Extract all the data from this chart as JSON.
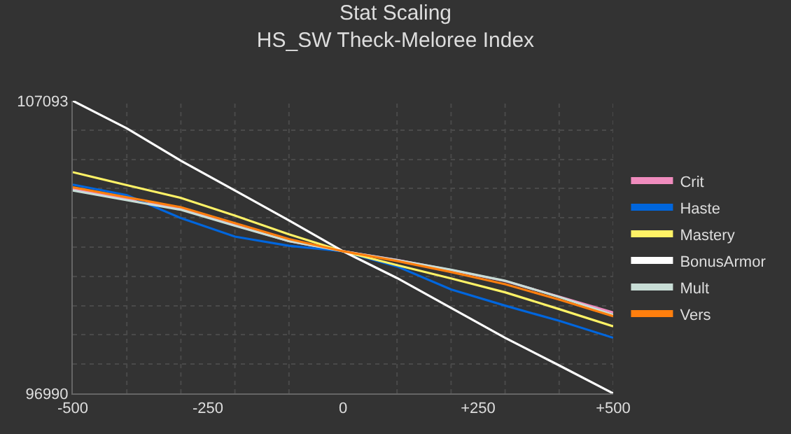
{
  "chart_data": {
    "type": "line",
    "title": "Stat Scaling",
    "subtitle": "HS_SW Theck-Meloree Index",
    "x": [
      -500,
      -400,
      -300,
      -200,
      -100,
      0,
      100,
      200,
      300,
      400,
      500
    ],
    "series": [
      {
        "name": "Crit",
        "color": "#f08cbe",
        "values": [
          104043,
          103700,
          103357,
          102800,
          102246,
          101898,
          101600,
          101250,
          100870,
          100330,
          99782
        ]
      },
      {
        "name": "Haste",
        "color": "#0066dd",
        "values": [
          104200,
          103833,
          103042,
          102404,
          102088,
          101898,
          101374,
          100578,
          100020,
          99496,
          98910
        ]
      },
      {
        "name": "Mastery",
        "color": "#fff266",
        "values": [
          104629,
          104180,
          103740,
          103130,
          102485,
          101898,
          101420,
          100960,
          100480,
          99900,
          99305
        ]
      },
      {
        "name": "BonusArmor",
        "color": "#ffffff",
        "values": [
          107093,
          106140,
          105025,
          103995,
          102961,
          101898,
          100973,
          99944,
          98910,
          97956,
          96990
        ]
      },
      {
        "name": "Mult",
        "color": "#c8ddd6",
        "values": [
          103995,
          103660,
          103330,
          102780,
          102250,
          101898,
          101590,
          101260,
          100880,
          100320,
          99706
        ]
      },
      {
        "name": "Vers",
        "color": "#ff7f0e",
        "values": [
          104105,
          103760,
          103420,
          102870,
          102320,
          101898,
          101560,
          101180,
          100760,
          100230,
          99658
        ]
      }
    ],
    "xlim": [
      -500,
      500
    ],
    "xticks": [
      {
        "value": -500,
        "label": "-500"
      },
      {
        "value": -400,
        "label": null
      },
      {
        "value": -300,
        "label": null
      },
      {
        "value": -250,
        "label": "-250"
      },
      {
        "value": -200,
        "label": null
      },
      {
        "value": -100,
        "label": null
      },
      {
        "value": 0,
        "label": "0"
      },
      {
        "value": 100,
        "label": null
      },
      {
        "value": 200,
        "label": null
      },
      {
        "value": 250,
        "label": "+250"
      },
      {
        "value": 300,
        "label": null
      },
      {
        "value": 400,
        "label": null
      },
      {
        "value": 500,
        "label": "+500"
      }
    ],
    "ylim": [
      96990,
      107093
    ],
    "yticks": [
      96990,
      {
        "value": 97000.3,
        "label": null
      },
      {
        "value": 98000.6,
        "label": null
      },
      {
        "value": 99010.9,
        "label": null
      },
      {
        "value": 100021.2,
        "label": null
      },
      {
        "value": 101031.5,
        "label": null
      },
      {
        "value": 102041.5,
        "label": null
      },
      {
        "value": 103051.8,
        "label": null
      },
      {
        "value": 104062.1,
        "label": null
      },
      {
        "value": 105072.4,
        "label": null
      },
      {
        "value": 106082.7,
        "label": null
      },
      107093
    ],
    "grid": true,
    "legend": "right",
    "marker": "none",
    "line_style": "solid"
  }
}
